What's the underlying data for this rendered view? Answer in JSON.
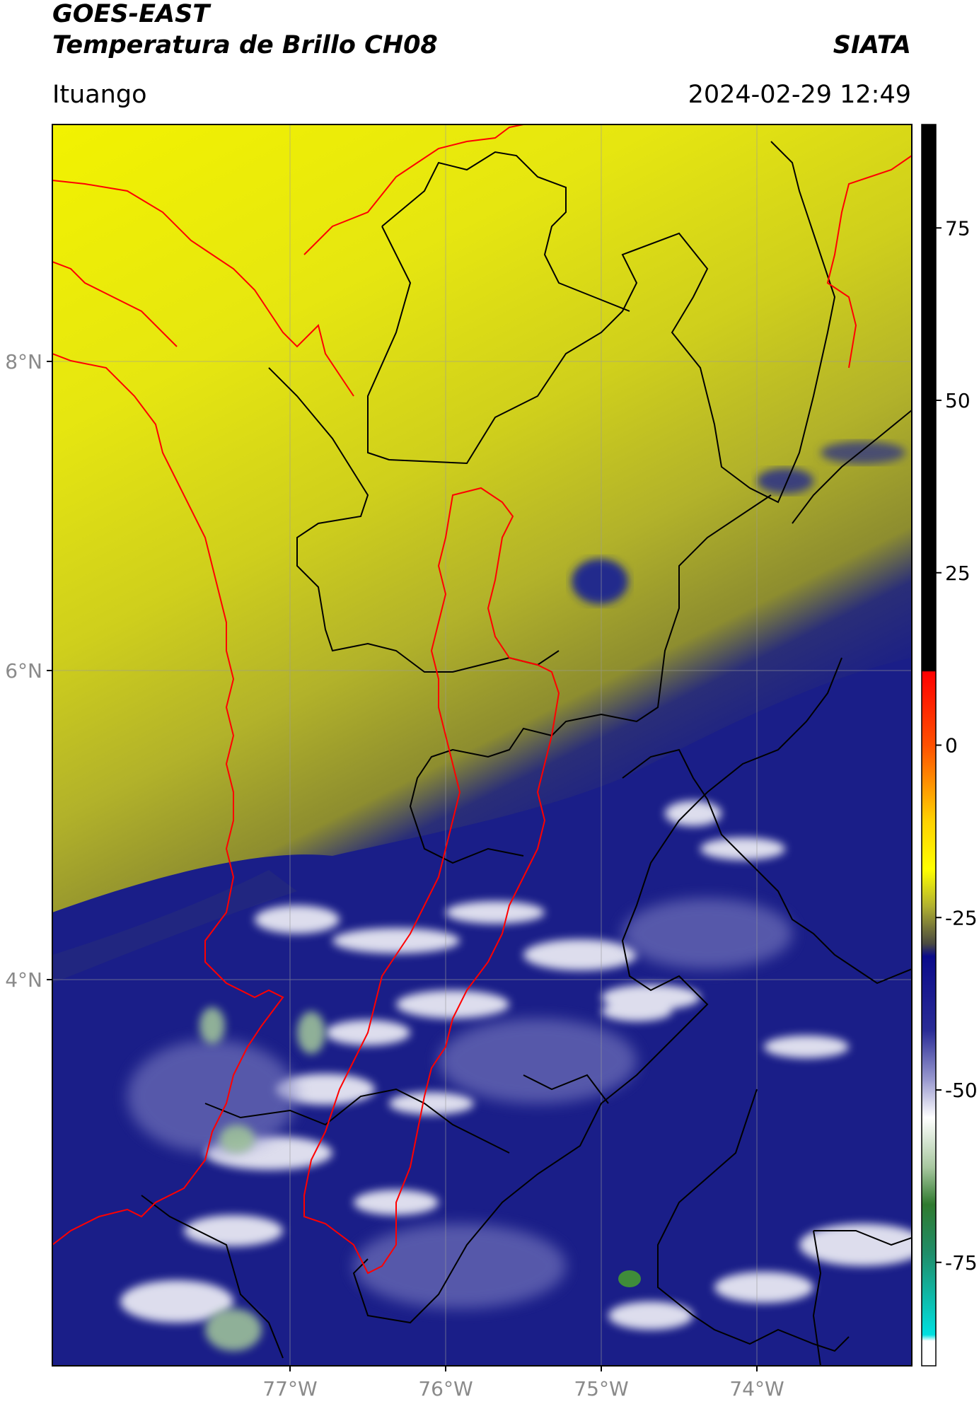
{
  "header": {
    "satellite": "GOES-EAST",
    "product": "Temperatura de Brillo CH08",
    "organization": "SIATA",
    "location": "Ituango",
    "datetime": "2024-02-29 12:49"
  },
  "map": {
    "lat_ticks": [
      "8°N",
      "6°N",
      "4°N"
    ],
    "lon_ticks": [
      "77°W",
      "76°W",
      "75°W",
      "74°W"
    ],
    "gridlines": true
  },
  "colorbar": {
    "ticks": [
      "75",
      "50",
      "25",
      "0",
      "-25",
      "-50",
      "-75"
    ],
    "tick_values": [
      75,
      50,
      25,
      0,
      -25,
      -50,
      -75
    ],
    "range": [
      -90,
      90
    ]
  },
  "colors": {
    "warm_cloudfree": "#f0f000",
    "mid": "#b8b827",
    "cold_cloud": "#161a86",
    "very_cold": "#ffffff",
    "coldest_green": "#3f8c3a",
    "coast_border": "#ff0000",
    "admin_border": "#000000"
  }
}
